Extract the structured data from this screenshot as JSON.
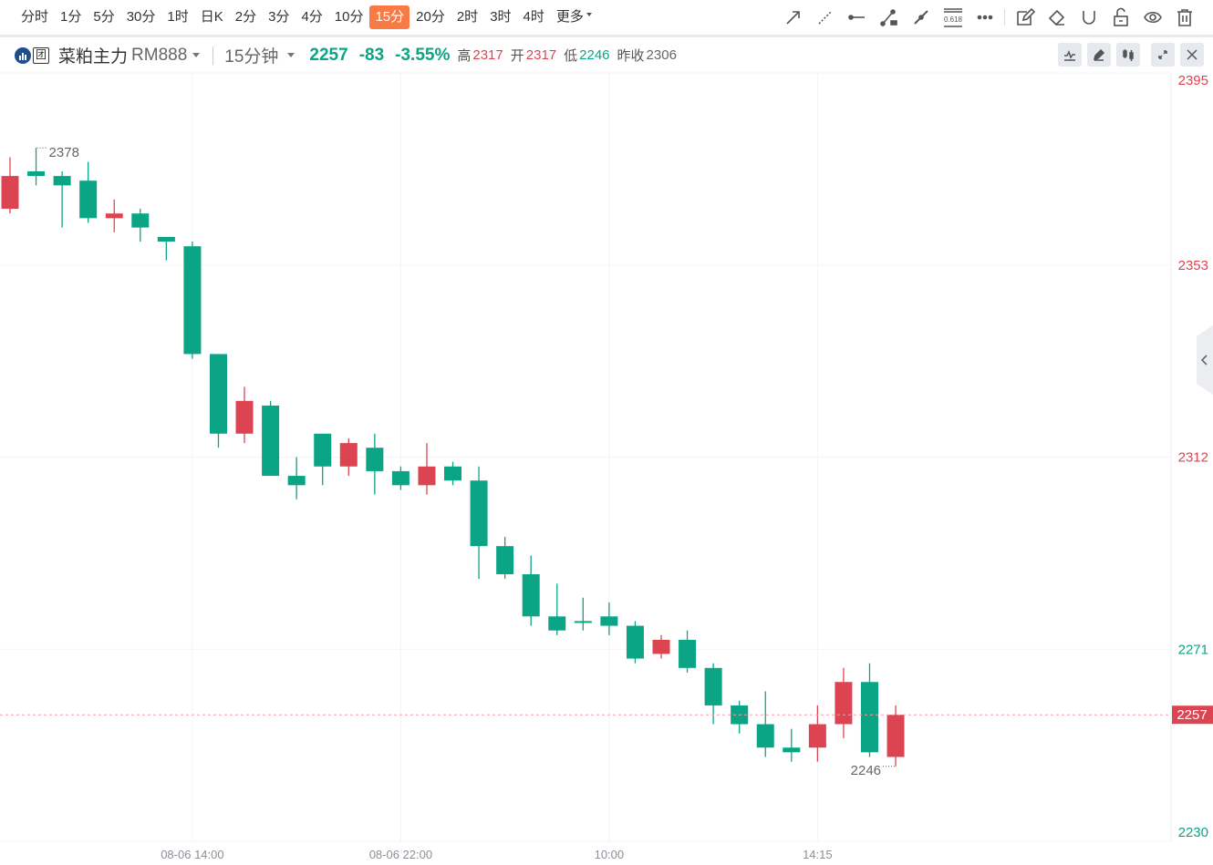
{
  "toolbar": {
    "periods": [
      "分时",
      "1分",
      "5分",
      "30分",
      "1时",
      "日K",
      "2分",
      "3分",
      "4分",
      "10分",
      "15分",
      "20分",
      "2时",
      "3时",
      "4时",
      "更多"
    ],
    "active_period": "15分",
    "drawing_tools": [
      "arrow-line-icon",
      "dashed-ray-icon",
      "horizontal-line-icon",
      "segment-icon",
      "extended-line-icon",
      "fibonacci-icon",
      "more-icon",
      "edit-icon",
      "eraser-icon",
      "magnet-icon",
      "unlock-icon",
      "eye-icon",
      "trash-icon"
    ],
    "fib_label": "0.618"
  },
  "info": {
    "name": "菜粕主力",
    "code": "RM888",
    "period": "15分钟",
    "price": "2257",
    "change": "-83",
    "change_pct": "-3.55%",
    "high_label": "高",
    "high": "2317",
    "open_label": "开",
    "open": "2317",
    "low_label": "低",
    "low": "2246",
    "prev_close_label": "昨收",
    "prev_close": "2306",
    "logo_text": "团"
  },
  "colors": {
    "up": "#dd4452",
    "down": "#0ba585",
    "accent": "#f97a45"
  },
  "chart_data": {
    "type": "candlestick",
    "ylim": [
      2230,
      2394
    ],
    "y_ticks": [
      "2395",
      "2353",
      "2312",
      "2271",
      "2230"
    ],
    "current_price": "2257",
    "max_label": "2378",
    "min_label": "2246",
    "x_labels": [
      {
        "index": 7,
        "label": "08-06 14:00"
      },
      {
        "index": 15,
        "label": "08-06 22:00"
      },
      {
        "index": 23,
        "label": "10:00"
      },
      {
        "index": 31,
        "label": "14:15"
      }
    ],
    "candles": [
      [
        2365,
        2376,
        2364,
        2372
      ],
      [
        2373,
        2378,
        2370,
        2372
      ],
      [
        2372,
        2373,
        2361,
        2370
      ],
      [
        2371,
        2375,
        2362,
        2363
      ],
      [
        2363,
        2367,
        2360,
        2364
      ],
      [
        2364,
        2365,
        2358,
        2361
      ],
      [
        2359,
        2359,
        2354,
        2358
      ],
      [
        2357,
        2358,
        2333,
        2334
      ],
      [
        2334,
        2334,
        2314,
        2317
      ],
      [
        2317,
        2327,
        2315,
        2324
      ],
      [
        2323,
        2324,
        2308,
        2308
      ],
      [
        2308,
        2312,
        2303,
        2306
      ],
      [
        2317,
        2317,
        2306,
        2310
      ],
      [
        2310,
        2316,
        2308,
        2315
      ],
      [
        2314,
        2317,
        2304,
        2309
      ],
      [
        2309,
        2310,
        2305,
        2306
      ],
      [
        2306,
        2315,
        2304,
        2310
      ],
      [
        2310,
        2311,
        2306,
        2307
      ],
      [
        2307,
        2310,
        2286,
        2293
      ],
      [
        2293,
        2295,
        2286,
        2287
      ],
      [
        2287,
        2291,
        2276,
        2278
      ],
      [
        2278,
        2285,
        2274,
        2275
      ],
      [
        2277,
        2282,
        2275,
        2277
      ],
      [
        2278,
        2281,
        2274,
        2276
      ],
      [
        2276,
        2277,
        2268,
        2269
      ],
      [
        2270,
        2274,
        2269,
        2273
      ],
      [
        2273,
        2275,
        2266,
        2267
      ],
      [
        2267,
        2268,
        2255,
        2259
      ],
      [
        2259,
        2260,
        2253,
        2255
      ],
      [
        2255,
        2262,
        2248,
        2250
      ],
      [
        2250,
        2254,
        2247,
        2249
      ],
      [
        2250,
        2259,
        2247,
        2255
      ],
      [
        2255,
        2267,
        2252,
        2264
      ],
      [
        2264,
        2268,
        2248,
        2249
      ],
      [
        2248,
        2259,
        2246,
        2257
      ]
    ],
    "candle_format": "open,high,low,close"
  }
}
